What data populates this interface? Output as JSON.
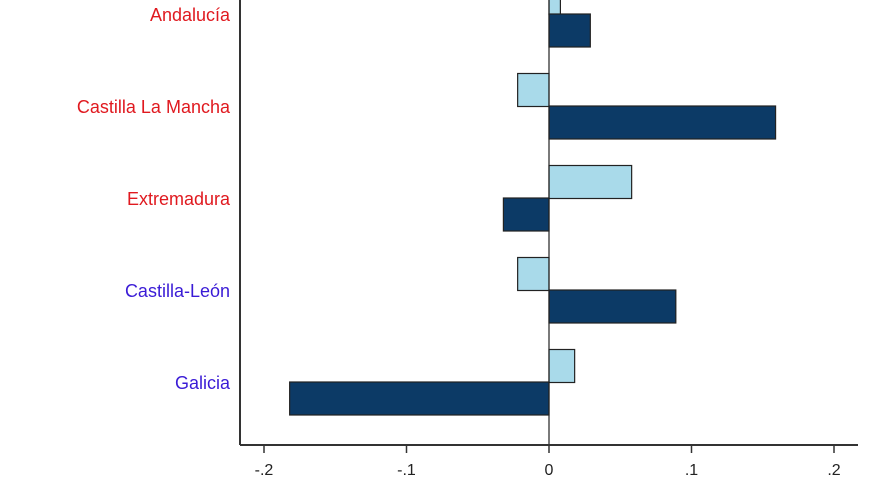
{
  "chart_data": {
    "type": "bar",
    "orientation": "horizontal",
    "categories": [
      {
        "label": "Andalucía",
        "color": "#e0191f"
      },
      {
        "label": "Castilla La Mancha",
        "color": "#e0191f"
      },
      {
        "label": "Extremadura",
        "color": "#e0191f"
      },
      {
        "label": "Castilla-León",
        "color": "#3a1bd6"
      },
      {
        "label": "Galicia",
        "color": "#3a1bd6"
      }
    ],
    "series": [
      {
        "color": "#a9daea",
        "values": [
          0.008,
          -0.022,
          0.058,
          -0.022,
          0.018
        ]
      },
      {
        "color": "#0c3a66",
        "values": [
          0.029,
          0.159,
          -0.032,
          0.089,
          -0.182
        ]
      }
    ],
    "x_axis": {
      "ticks": [
        -0.2,
        -0.1,
        0,
        0.1,
        0.2
      ],
      "tick_labels": [
        "-.2",
        "-.1",
        "0",
        ".1",
        ".2"
      ],
      "range": [
        -0.2,
        0.2
      ]
    },
    "grid": false,
    "legend": "none"
  }
}
